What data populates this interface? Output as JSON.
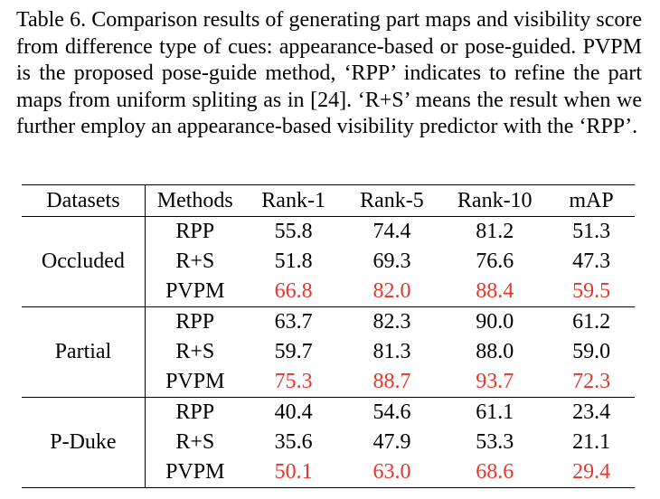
{
  "caption": "Table 6. Comparison results of generating part maps and visibility score from difference type of cues: appearance-based or pose-guided. PVPM is the proposed pose-guide method, ‘RPP’ indicates to refine the part maps from uniform spliting as in [24]. ‘R+S’ means the result when we further employ an appearance-based visibility predictor with the ‘RPP’.",
  "colors": {
    "best": "#e8352b",
    "text": "#000000"
  },
  "table": {
    "headers": [
      "Datasets",
      "Methods",
      "Rank-1",
      "Rank-5",
      "Rank-10",
      "mAP"
    ],
    "groups": [
      {
        "dataset": "Occluded",
        "rows": [
          {
            "method": "RPP",
            "values": [
              "55.8",
              "74.4",
              "81.2",
              "51.3"
            ],
            "best": false
          },
          {
            "method": "R+S",
            "values": [
              "51.8",
              "69.3",
              "76.6",
              "47.3"
            ],
            "best": false
          },
          {
            "method": "PVPM",
            "values": [
              "66.8",
              "82.0",
              "88.4",
              "59.5"
            ],
            "best": true
          }
        ]
      },
      {
        "dataset": "Partial",
        "rows": [
          {
            "method": "RPP",
            "values": [
              "63.7",
              "82.3",
              "90.0",
              "61.2"
            ],
            "best": false
          },
          {
            "method": "R+S",
            "values": [
              "59.7",
              "81.3",
              "88.0",
              "59.0"
            ],
            "best": false
          },
          {
            "method": "PVPM",
            "values": [
              "75.3",
              "88.7",
              "93.7",
              "72.3"
            ],
            "best": true
          }
        ]
      },
      {
        "dataset": "P-Duke",
        "rows": [
          {
            "method": "RPP",
            "values": [
              "40.4",
              "54.6",
              "61.1",
              "23.4"
            ],
            "best": false
          },
          {
            "method": "R+S",
            "values": [
              "35.6",
              "47.9",
              "53.3",
              "21.1"
            ],
            "best": false
          },
          {
            "method": "PVPM",
            "values": [
              "50.1",
              "63.0",
              "68.6",
              "29.4"
            ],
            "best": true
          }
        ]
      }
    ]
  }
}
